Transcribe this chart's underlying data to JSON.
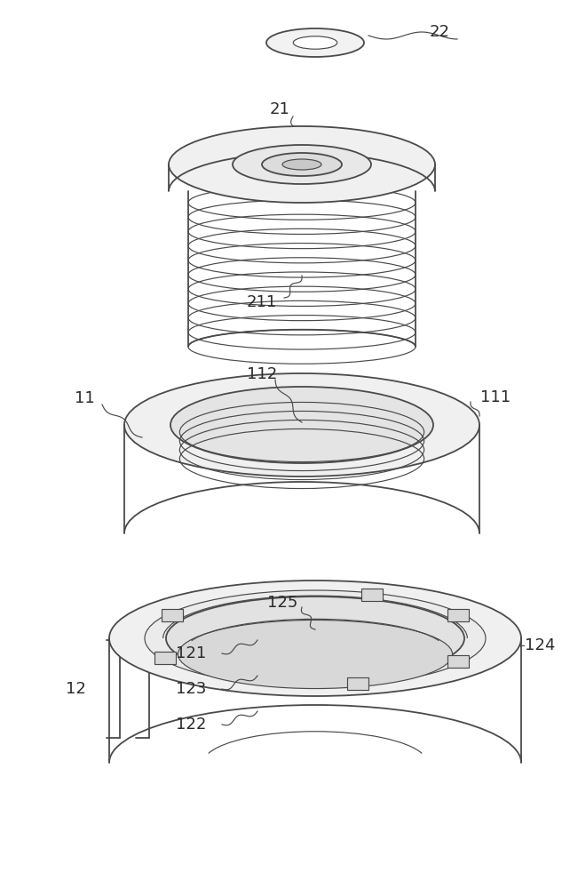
{
  "bg_color": "#ffffff",
  "line_color": "#4a4a4a",
  "label_color": "#2a2a2a",
  "lw": 1.3,
  "tlw": 0.85,
  "figsize": [
    6.42,
    10.0
  ],
  "dpi": 100
}
